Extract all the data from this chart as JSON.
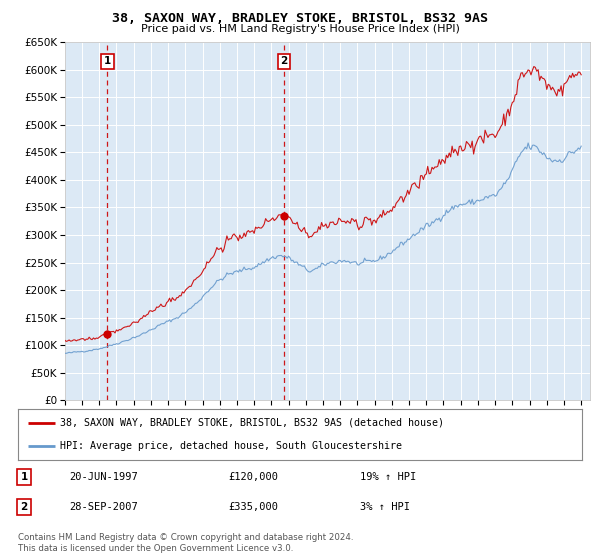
{
  "title1": "38, SAXON WAY, BRADLEY STOKE, BRISTOL, BS32 9AS",
  "title2": "Price paid vs. HM Land Registry's House Price Index (HPI)",
  "bg_color": "#dce9f5",
  "grid_color": "#ffffff",
  "red_line_color": "#cc0000",
  "blue_line_color": "#6699cc",
  "sale1_date_num": 1997.47,
  "sale1_price": 120000,
  "sale2_date_num": 2007.74,
  "sale2_price": 335000,
  "legend_line1": "38, SAXON WAY, BRADLEY STOKE, BRISTOL, BS32 9AS (detached house)",
  "legend_line2": "HPI: Average price, detached house, South Gloucestershire",
  "table_row1_num": "1",
  "table_row1_date": "20-JUN-1997",
  "table_row1_price": "£120,000",
  "table_row1_hpi": "19% ↑ HPI",
  "table_row2_num": "2",
  "table_row2_date": "28-SEP-2007",
  "table_row2_price": "£335,000",
  "table_row2_hpi": "3% ↑ HPI",
  "footer": "Contains HM Land Registry data © Crown copyright and database right 2024.\nThis data is licensed under the Open Government Licence v3.0.",
  "ylim_min": 0,
  "ylim_max": 650000,
  "xmin": 1995.0,
  "xmax": 2025.5
}
